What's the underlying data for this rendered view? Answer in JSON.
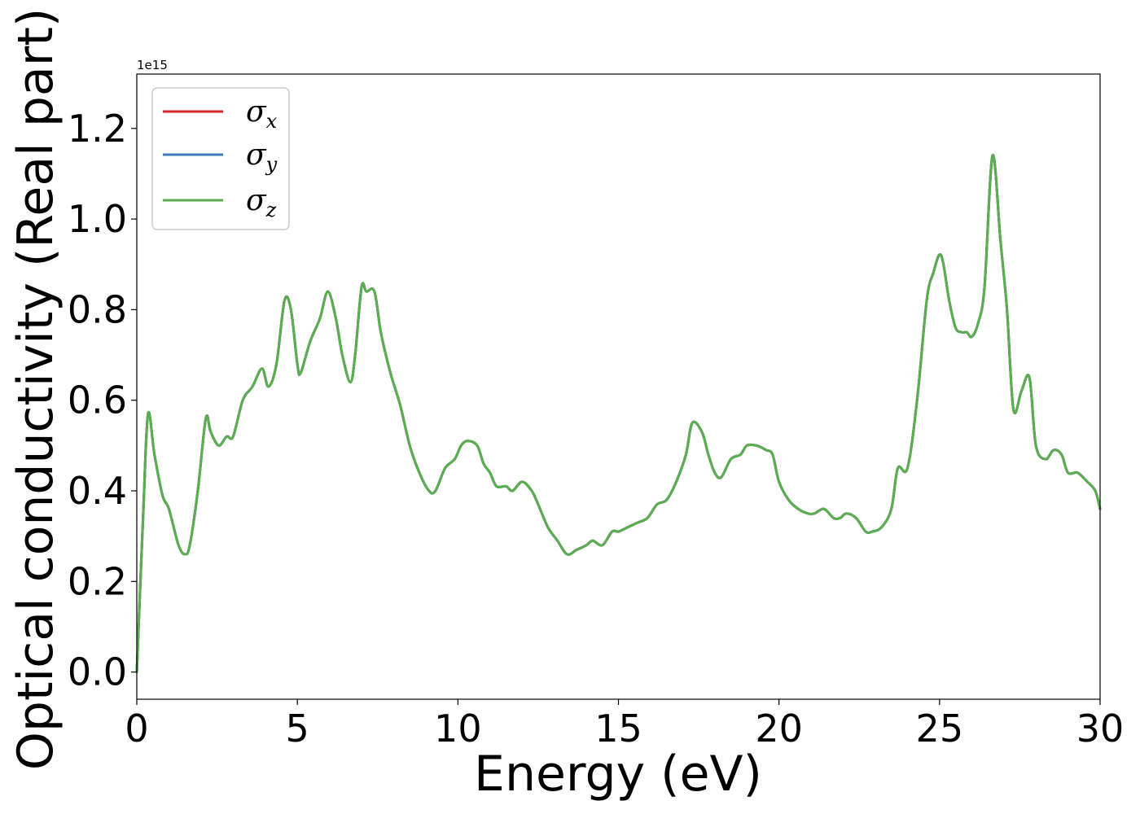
{
  "chart_data": {
    "type": "line",
    "title": "",
    "xlabel": "Energy (eV)",
    "ylabel": "Optical conductivity (Real part)",
    "y_offset_text": "1e15",
    "y_multiplier": 1000000000000000.0,
    "xlim": [
      0,
      30
    ],
    "ylim": [
      -0.06,
      1.32
    ],
    "xticks": [
      0,
      5,
      10,
      15,
      20,
      25,
      30
    ],
    "xtick_labels": [
      "0",
      "5",
      "10",
      "15",
      "20",
      "25",
      "30"
    ],
    "yticks": [
      0.0,
      0.2,
      0.4,
      0.6,
      0.8,
      1.0,
      1.2
    ],
    "ytick_labels": [
      "0.0",
      "0.2",
      "0.4",
      "0.6",
      "0.8",
      "1.0",
      "1.2"
    ],
    "grid": false,
    "legend_position": "top-left",
    "x": [
      0.0,
      0.2,
      0.35,
      0.55,
      0.8,
      1.0,
      1.3,
      1.5,
      1.65,
      1.9,
      2.15,
      2.3,
      2.55,
      2.8,
      3.0,
      3.3,
      3.6,
      3.9,
      4.1,
      4.35,
      4.6,
      4.8,
      5.0,
      5.1,
      5.4,
      5.7,
      5.95,
      6.2,
      6.4,
      6.65,
      6.8,
      7.0,
      7.15,
      7.4,
      7.6,
      7.9,
      8.2,
      8.5,
      8.8,
      9.1,
      9.3,
      9.6,
      9.9,
      10.1,
      10.3,
      10.6,
      10.8,
      11.0,
      11.2,
      11.5,
      11.7,
      12.0,
      12.3,
      12.5,
      12.8,
      13.1,
      13.4,
      13.7,
      14.0,
      14.2,
      14.5,
      14.8,
      15.0,
      15.3,
      15.6,
      15.9,
      16.2,
      16.5,
      16.8,
      17.1,
      17.3,
      17.6,
      17.8,
      18.0,
      18.2,
      18.5,
      18.8,
      19.0,
      19.3,
      19.6,
      19.8,
      20.0,
      20.3,
      20.6,
      20.9,
      21.1,
      21.4,
      21.7,
      21.9,
      22.1,
      22.4,
      22.7,
      22.9,
      23.2,
      23.5,
      23.7,
      24.0,
      24.3,
      24.6,
      24.8,
      25.05,
      25.3,
      25.5,
      25.7,
      25.85,
      26.0,
      26.2,
      26.4,
      26.65,
      26.9,
      27.1,
      27.3,
      27.55,
      27.8,
      28.0,
      28.3,
      28.55,
      28.8,
      29.0,
      29.3,
      29.6,
      29.85,
      30.0
    ],
    "series": [
      {
        "name": "σx",
        "color": "#d62728",
        "y": [
          0.0,
          0.35,
          0.57,
          0.48,
          0.39,
          0.36,
          0.28,
          0.26,
          0.28,
          0.4,
          0.56,
          0.53,
          0.5,
          0.52,
          0.52,
          0.6,
          0.63,
          0.67,
          0.63,
          0.68,
          0.82,
          0.8,
          0.68,
          0.66,
          0.73,
          0.78,
          0.84,
          0.78,
          0.7,
          0.64,
          0.7,
          0.85,
          0.84,
          0.84,
          0.75,
          0.66,
          0.59,
          0.5,
          0.44,
          0.4,
          0.4,
          0.45,
          0.47,
          0.5,
          0.51,
          0.5,
          0.46,
          0.44,
          0.41,
          0.41,
          0.4,
          0.42,
          0.4,
          0.37,
          0.32,
          0.29,
          0.26,
          0.27,
          0.28,
          0.29,
          0.28,
          0.31,
          0.31,
          0.32,
          0.33,
          0.34,
          0.37,
          0.38,
          0.42,
          0.48,
          0.55,
          0.53,
          0.48,
          0.44,
          0.43,
          0.47,
          0.48,
          0.5,
          0.5,
          0.49,
          0.48,
          0.42,
          0.38,
          0.36,
          0.35,
          0.35,
          0.36,
          0.34,
          0.34,
          0.35,
          0.34,
          0.31,
          0.31,
          0.32,
          0.36,
          0.45,
          0.45,
          0.6,
          0.82,
          0.88,
          0.92,
          0.82,
          0.76,
          0.75,
          0.75,
          0.74,
          0.77,
          0.85,
          1.14,
          0.95,
          0.8,
          0.58,
          0.62,
          0.65,
          0.5,
          0.47,
          0.49,
          0.48,
          0.44,
          0.44,
          0.42,
          0.4,
          0.36
        ]
      },
      {
        "name": "σy",
        "color": "#3a7dba",
        "y": [
          0.0,
          0.35,
          0.57,
          0.48,
          0.39,
          0.36,
          0.28,
          0.26,
          0.28,
          0.4,
          0.56,
          0.53,
          0.5,
          0.52,
          0.52,
          0.6,
          0.63,
          0.67,
          0.63,
          0.68,
          0.82,
          0.8,
          0.68,
          0.66,
          0.73,
          0.78,
          0.84,
          0.78,
          0.7,
          0.64,
          0.7,
          0.85,
          0.84,
          0.84,
          0.75,
          0.66,
          0.59,
          0.5,
          0.44,
          0.4,
          0.4,
          0.45,
          0.47,
          0.5,
          0.51,
          0.5,
          0.46,
          0.44,
          0.41,
          0.41,
          0.4,
          0.42,
          0.4,
          0.37,
          0.32,
          0.29,
          0.26,
          0.27,
          0.28,
          0.29,
          0.28,
          0.31,
          0.31,
          0.32,
          0.33,
          0.34,
          0.37,
          0.38,
          0.42,
          0.48,
          0.55,
          0.53,
          0.48,
          0.44,
          0.43,
          0.47,
          0.48,
          0.5,
          0.5,
          0.49,
          0.48,
          0.42,
          0.38,
          0.36,
          0.35,
          0.35,
          0.36,
          0.34,
          0.34,
          0.35,
          0.34,
          0.31,
          0.31,
          0.32,
          0.36,
          0.45,
          0.45,
          0.6,
          0.82,
          0.88,
          0.92,
          0.82,
          0.76,
          0.75,
          0.75,
          0.74,
          0.77,
          0.85,
          1.14,
          0.95,
          0.8,
          0.58,
          0.62,
          0.65,
          0.5,
          0.47,
          0.49,
          0.48,
          0.44,
          0.44,
          0.42,
          0.4,
          0.36
        ]
      },
      {
        "name": "σz",
        "color": "#5aae4f",
        "y": [
          0.0,
          0.35,
          0.57,
          0.48,
          0.39,
          0.36,
          0.28,
          0.26,
          0.28,
          0.4,
          0.56,
          0.53,
          0.5,
          0.52,
          0.52,
          0.6,
          0.63,
          0.67,
          0.63,
          0.68,
          0.82,
          0.8,
          0.68,
          0.66,
          0.73,
          0.78,
          0.84,
          0.78,
          0.7,
          0.64,
          0.7,
          0.85,
          0.84,
          0.84,
          0.75,
          0.66,
          0.59,
          0.5,
          0.44,
          0.4,
          0.4,
          0.45,
          0.47,
          0.5,
          0.51,
          0.5,
          0.46,
          0.44,
          0.41,
          0.41,
          0.4,
          0.42,
          0.4,
          0.37,
          0.32,
          0.29,
          0.26,
          0.27,
          0.28,
          0.29,
          0.28,
          0.31,
          0.31,
          0.32,
          0.33,
          0.34,
          0.37,
          0.38,
          0.42,
          0.48,
          0.55,
          0.53,
          0.48,
          0.44,
          0.43,
          0.47,
          0.48,
          0.5,
          0.5,
          0.49,
          0.48,
          0.42,
          0.38,
          0.36,
          0.35,
          0.35,
          0.36,
          0.34,
          0.34,
          0.35,
          0.34,
          0.31,
          0.31,
          0.32,
          0.36,
          0.45,
          0.45,
          0.6,
          0.82,
          0.88,
          0.92,
          0.82,
          0.76,
          0.75,
          0.75,
          0.74,
          0.77,
          0.85,
          1.14,
          0.95,
          0.8,
          0.58,
          0.62,
          0.65,
          0.5,
          0.47,
          0.49,
          0.48,
          0.44,
          0.44,
          0.42,
          0.4,
          0.36
        ]
      }
    ]
  }
}
